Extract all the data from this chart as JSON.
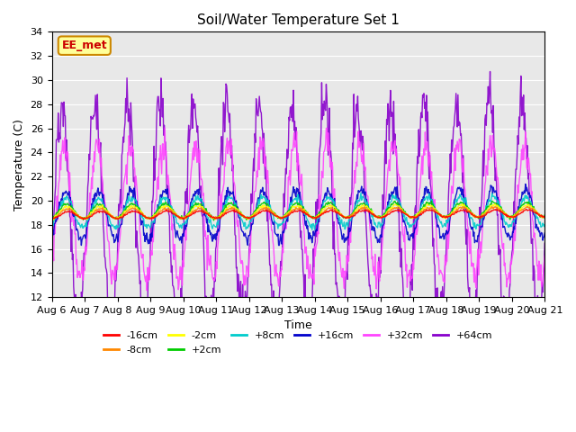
{
  "title": "Soil/Water Temperature Set 1",
  "xlabel": "Time",
  "ylabel": "Temperature (C)",
  "ylim": [
    12,
    34
  ],
  "yticks": [
    12,
    14,
    16,
    18,
    20,
    22,
    24,
    26,
    28,
    30,
    32,
    34
  ],
  "num_days": 16,
  "plot_bg_color": "#e8e8e8",
  "series": {
    "-16cm": {
      "color": "#ff0000",
      "amplitude": 0.3,
      "phase": 0.0,
      "base": 18.8,
      "trend": 0.01
    },
    "-8cm": {
      "color": "#ff8800",
      "amplitude": 0.4,
      "phase": 0.1,
      "base": 18.9,
      "trend": 0.01
    },
    "-2cm": {
      "color": "#ffff00",
      "amplitude": 0.5,
      "phase": 0.2,
      "base": 19.0,
      "trend": 0.01
    },
    "+2cm": {
      "color": "#00cc00",
      "amplitude": 0.6,
      "phase": 0.3,
      "base": 19.1,
      "trend": 0.01
    },
    "+8cm": {
      "color": "#00cccc",
      "amplitude": 1.2,
      "phase": 0.4,
      "base": 19.0,
      "trend": 0.01
    },
    "+16cm": {
      "color": "#0000cc",
      "amplitude": 2.0,
      "phase": 0.5,
      "base": 18.8,
      "trend": 0.01
    },
    "+32cm": {
      "color": "#ff44ff",
      "amplitude": 5.5,
      "phase": 0.7,
      "base": 19.0,
      "trend": 0.01
    },
    "+64cm": {
      "color": "#8800cc",
      "amplitude": 9.0,
      "phase": 1.2,
      "base": 19.0,
      "trend": 0.0
    }
  },
  "watermark": "EE_met",
  "watermark_color": "#cc0000",
  "watermark_bg": "#ffff99",
  "xtick_labels": [
    "Aug 6",
    "Aug 7",
    "Aug 8",
    "Aug 9",
    "Aug 10",
    "Aug 11",
    "Aug 12",
    "Aug 13",
    "Aug 14",
    "Aug 15",
    "Aug 16",
    "Aug 17",
    "Aug 18",
    "Aug 19",
    "Aug 20",
    "Aug 21"
  ]
}
